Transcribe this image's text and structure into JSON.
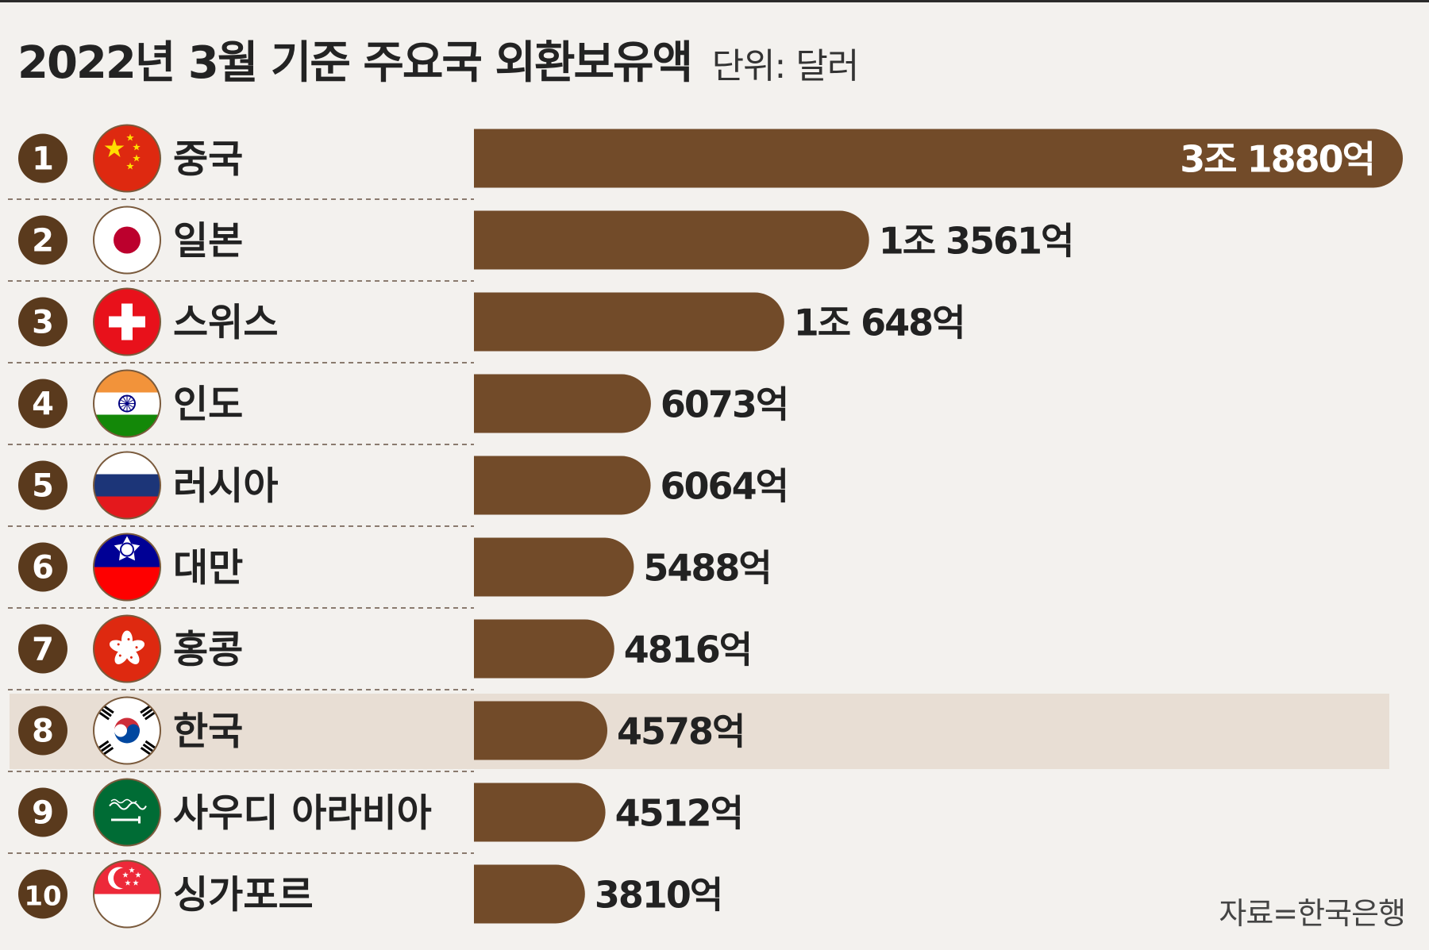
{
  "title": "2022년 3월 기준 주요국 외환보유액",
  "unit": "단위: 달러",
  "source": "자료=한국은행",
  "colors": {
    "bar": "#724b29",
    "highlight_row": "#e8ded4",
    "rank_circle": "#5a3a1d",
    "divider": "#8a7a6e"
  },
  "highlight_rank": 8,
  "chart_data": {
    "type": "bar",
    "orientation": "horizontal",
    "unit": "억 달러",
    "categories": [
      "중국",
      "일본",
      "스위스",
      "인도",
      "러시아",
      "대만",
      "홍콩",
      "한국",
      "사우디 아라비아",
      "싱가포르"
    ],
    "ranks": [
      "1",
      "2",
      "3",
      "4",
      "5",
      "6",
      "7",
      "8",
      "9",
      "10"
    ],
    "values": [
      31880,
      13561,
      10648,
      6073,
      6064,
      5488,
      4816,
      4578,
      4512,
      3810
    ],
    "value_labels": [
      "3조 1880억",
      "1조 3561억",
      "1조 648억",
      "6073억",
      "6064억",
      "5488억",
      "4816억",
      "4578억",
      "4512억",
      "3810억"
    ],
    "flags": [
      "china-flag-icon",
      "japan-flag-icon",
      "switzerland-flag-icon",
      "india-flag-icon",
      "russia-flag-icon",
      "taiwan-flag-icon",
      "hong-kong-flag-icon",
      "south-korea-flag-icon",
      "saudi-arabia-flag-icon",
      "singapore-flag-icon"
    ]
  }
}
